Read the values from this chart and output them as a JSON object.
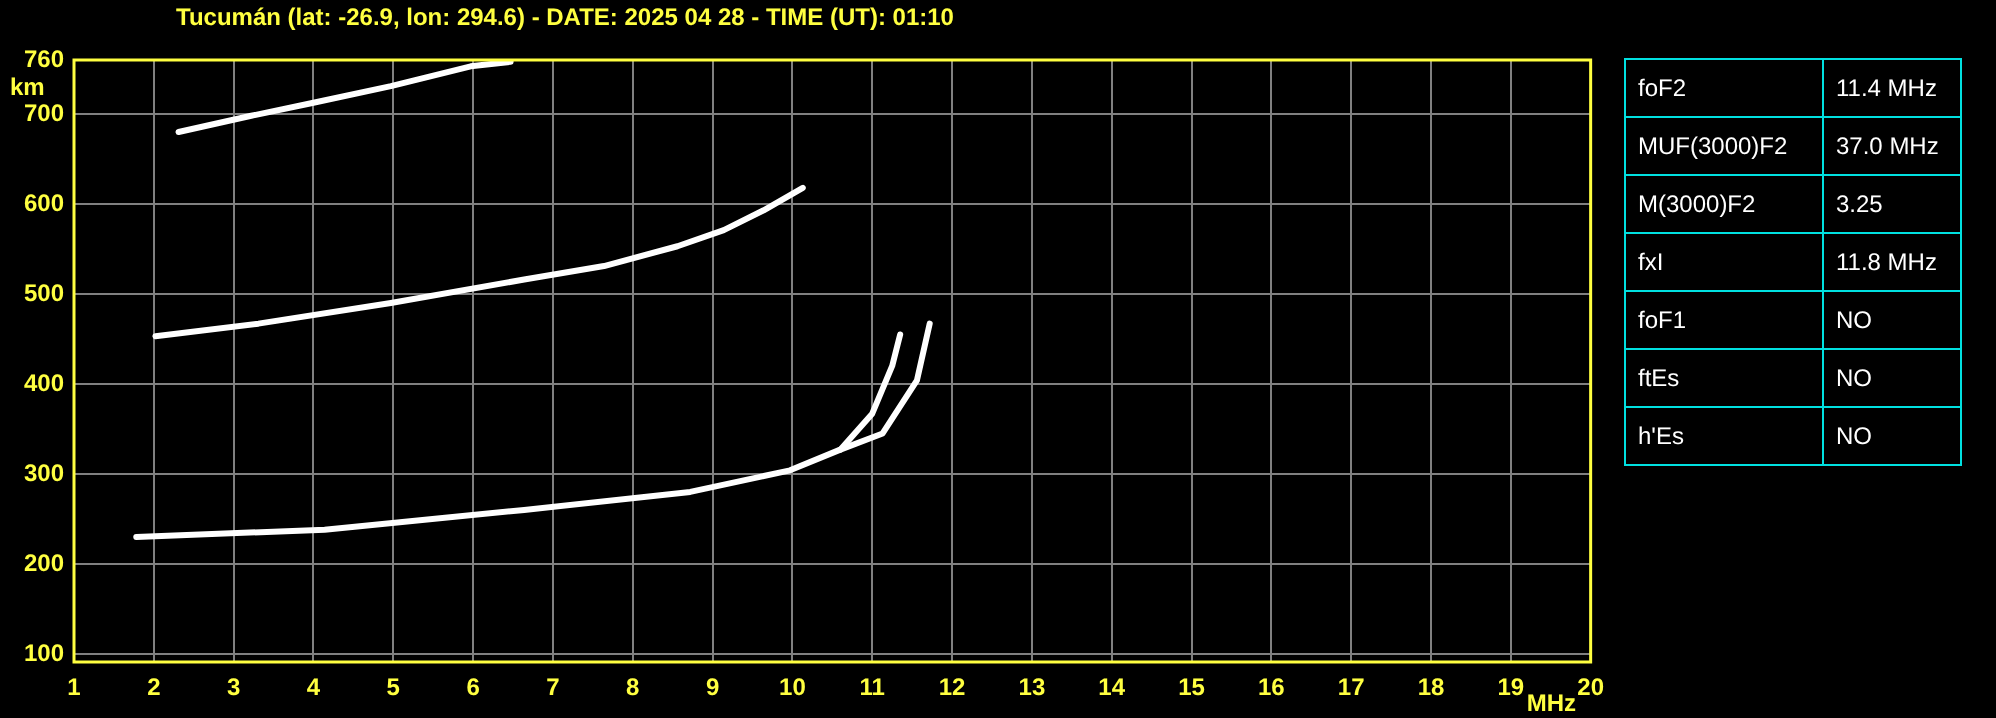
{
  "chart_data": [
    {
      "type": "line",
      "title": "Tucumán (lat: -26.9, lon: 294.6) - DATE: 2025 04 28 - TIME (UT): 01:10",
      "xlabel": "MHz",
      "ylabel": "km",
      "xlim": [
        1,
        20
      ],
      "xticks": [
        1,
        2,
        3,
        4,
        5,
        6,
        7,
        8,
        9,
        10,
        11,
        12,
        13,
        14,
        15,
        16,
        17,
        18,
        19,
        20
      ],
      "ylim": [
        91,
        760
      ],
      "yticks": [
        100,
        200,
        300,
        400,
        500,
        600,
        700,
        760
      ],
      "grid": true,
      "marker": "none",
      "line_style": "solid",
      "series": [
        {
          "color": "#ffffff",
          "x": [
            1.78,
            4.14,
            6.64,
            8.72,
            9.97,
            10.6,
            11.0,
            11.25,
            11.35
          ],
          "values": [
            230,
            238,
            260,
            280,
            304,
            327,
            367,
            420,
            455
          ]
        },
        {
          "color": "#ffffff",
          "x": [
            10.6,
            11.13,
            11.56,
            11.72
          ],
          "values": [
            327,
            345,
            404,
            467
          ]
        },
        {
          "color": "#ffffff",
          "x": [
            2.02,
            3.31,
            4.97,
            6.64,
            7.64,
            8.56,
            9.14,
            9.64,
            10.13
          ],
          "values": [
            453,
            467,
            490,
            516,
            531,
            553,
            571,
            593,
            618
          ]
        },
        {
          "color": "#ffffff",
          "x": [
            2.31,
            3.22,
            3.97,
            4.97,
            5.97,
            6.47
          ],
          "values": [
            680,
            698,
            712,
            731,
            753,
            758
          ]
        }
      ]
    },
    {
      "type": "other",
      "annotations": [
        "foF2",
        "11.4 MHz",
        "MUF(3000)F2",
        "37.0 MHz",
        "M(3000)F2",
        "3.25",
        "fxI",
        "11.8 MHz",
        "foF1",
        "NO",
        "ftEs",
        "NO",
        "h'Es",
        "NO"
      ]
    }
  ]
}
